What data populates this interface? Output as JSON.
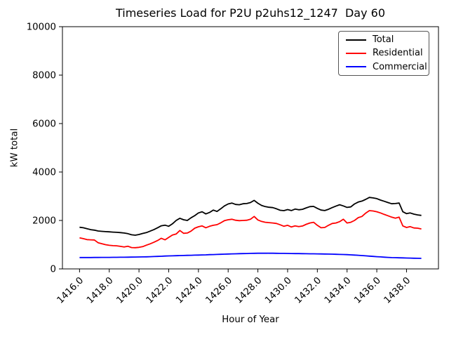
{
  "figure": {
    "title": "Timeseries Load for P2U p2uhs12_1247  Day 60",
    "xlabel": "Hour of Year",
    "ylabel": "kW total"
  },
  "legend": {
    "position": "upper right",
    "items": [
      {
        "label": "Total",
        "color": "#000000"
      },
      {
        "label": "Residential",
        "color": "#ff0000"
      },
      {
        "label": "Commercial",
        "color": "#0000ff"
      }
    ]
  },
  "chart_data": {
    "type": "line",
    "title": "Timeseries Load for P2U p2uhs12_1247  Day 60",
    "xlabel": "Hour of Year",
    "ylabel": "kW total",
    "xlim": [
      1414.85,
      1440.15
    ],
    "ylim": [
      0,
      10000
    ],
    "grid": false,
    "legend_position": "upper right",
    "xticks": [
      1416,
      1418,
      1420,
      1422,
      1424,
      1426,
      1428,
      1430,
      1432,
      1434,
      1436,
      1438
    ],
    "xtick_labels": [
      "1416.0",
      "1418.0",
      "1420.0",
      "1422.0",
      "1424.0",
      "1426.0",
      "1428.0",
      "1430.0",
      "1432.0",
      "1434.0",
      "1436.0",
      "1438.0"
    ],
    "yticks": [
      0,
      2000,
      4000,
      6000,
      8000,
      10000
    ],
    "ytick_labels": [
      "0",
      "2000",
      "4000",
      "6000",
      "8000",
      "10000"
    ],
    "x": [
      1416.0,
      1416.25,
      1416.5,
      1416.75,
      1417.0,
      1417.25,
      1417.5,
      1417.75,
      1418.0,
      1418.25,
      1418.5,
      1418.75,
      1419.0,
      1419.25,
      1419.5,
      1419.75,
      1420.0,
      1420.25,
      1420.5,
      1420.75,
      1421.0,
      1421.25,
      1421.5,
      1421.75,
      1422.0,
      1422.25,
      1422.5,
      1422.75,
      1423.0,
      1423.25,
      1423.5,
      1423.75,
      1424.0,
      1424.25,
      1424.5,
      1424.75,
      1425.0,
      1425.25,
      1425.5,
      1425.75,
      1426.0,
      1426.25,
      1426.5,
      1426.75,
      1427.0,
      1427.25,
      1427.5,
      1427.75,
      1428.0,
      1428.25,
      1428.5,
      1428.75,
      1429.0,
      1429.25,
      1429.5,
      1429.75,
      1430.0,
      1430.25,
      1430.5,
      1430.75,
      1431.0,
      1431.25,
      1431.5,
      1431.75,
      1432.0,
      1432.25,
      1432.5,
      1432.75,
      1433.0,
      1433.25,
      1433.5,
      1433.75,
      1434.0,
      1434.25,
      1434.5,
      1434.75,
      1435.0,
      1435.25,
      1435.5,
      1435.75,
      1436.0,
      1436.25,
      1436.5,
      1436.75,
      1437.0,
      1437.25,
      1437.5,
      1437.75,
      1438.0,
      1438.25,
      1438.5,
      1438.75,
      1439.0
    ],
    "series": [
      {
        "name": "Total",
        "color": "#000000",
        "values": [
          1720,
          1700,
          1660,
          1620,
          1600,
          1565,
          1550,
          1540,
          1530,
          1520,
          1510,
          1500,
          1480,
          1455,
          1410,
          1390,
          1420,
          1465,
          1500,
          1560,
          1620,
          1700,
          1780,
          1805,
          1760,
          1860,
          2000,
          2090,
          2030,
          2000,
          2110,
          2200,
          2310,
          2360,
          2270,
          2330,
          2430,
          2370,
          2480,
          2600,
          2680,
          2720,
          2660,
          2650,
          2690,
          2700,
          2740,
          2830,
          2710,
          2620,
          2570,
          2545,
          2530,
          2480,
          2420,
          2405,
          2450,
          2410,
          2470,
          2440,
          2460,
          2520,
          2570,
          2580,
          2500,
          2430,
          2410,
          2460,
          2530,
          2590,
          2650,
          2600,
          2540,
          2560,
          2680,
          2760,
          2800,
          2870,
          2950,
          2930,
          2900,
          2840,
          2790,
          2740,
          2690,
          2700,
          2720,
          2360,
          2280,
          2310,
          2260,
          2230,
          2210
        ]
      },
      {
        "name": "Residential",
        "color": "#ff0000",
        "values": [
          1280,
          1250,
          1210,
          1200,
          1195,
          1080,
          1040,
          1000,
          975,
          960,
          955,
          930,
          905,
          935,
          880,
          875,
          890,
          920,
          980,
          1035,
          1100,
          1170,
          1265,
          1200,
          1300,
          1400,
          1440,
          1585,
          1470,
          1480,
          1560,
          1680,
          1740,
          1775,
          1700,
          1760,
          1800,
          1825,
          1900,
          1990,
          2030,
          2050,
          2010,
          1990,
          2000,
          2010,
          2050,
          2165,
          2020,
          1960,
          1925,
          1910,
          1895,
          1875,
          1820,
          1760,
          1800,
          1730,
          1775,
          1745,
          1770,
          1840,
          1895,
          1925,
          1800,
          1700,
          1710,
          1800,
          1875,
          1895,
          1950,
          2050,
          1895,
          1925,
          2000,
          2115,
          2165,
          2300,
          2405,
          2390,
          2360,
          2310,
          2250,
          2195,
          2135,
          2095,
          2135,
          1775,
          1710,
          1745,
          1690,
          1680,
          1650
        ]
      },
      {
        "name": "Commercial",
        "color": "#0000ff",
        "values": [
          470,
          470,
          471,
          471,
          472,
          473,
          474,
          475,
          476,
          477,
          479,
          480,
          482,
          484,
          487,
          489,
          492,
          496,
          500,
          505,
          510,
          516,
          522,
          529,
          535,
          540,
          545,
          550,
          555,
          559,
          563,
          567,
          570,
          576,
          581,
          587,
          592,
          598,
          604,
          610,
          615,
          619,
          624,
          628,
          632,
          636,
          640,
          643,
          645,
          647,
          648,
          647,
          645,
          644,
          642,
          640,
          638,
          636,
          633,
          631,
          628,
          626,
          624,
          622,
          620,
          617,
          614,
          611,
          608,
          603,
          598,
          593,
          588,
          580,
          572,
          561,
          550,
          539,
          528,
          517,
          505,
          495,
          485,
          476,
          468,
          463,
          458,
          454,
          450,
          446,
          442,
          439,
          436
        ]
      }
    ]
  }
}
